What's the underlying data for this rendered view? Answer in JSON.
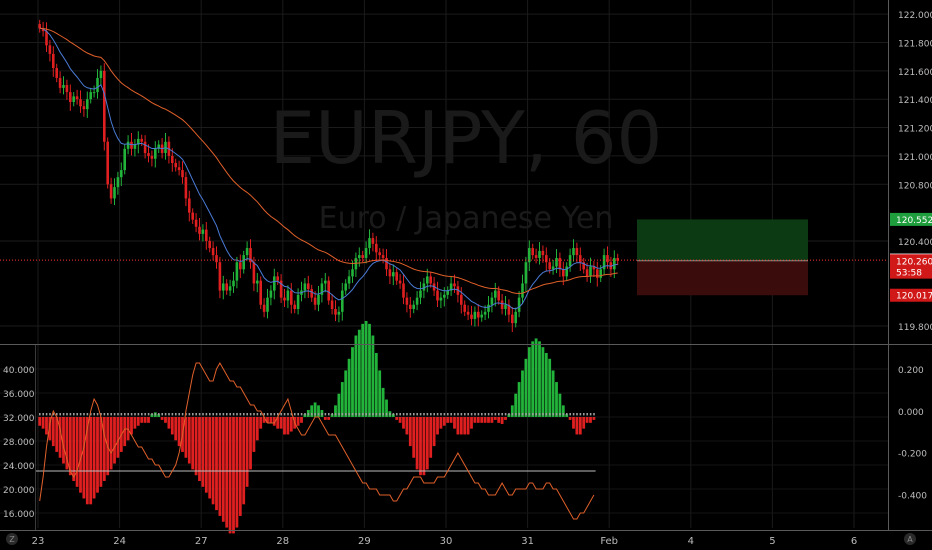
{
  "symbol_watermark": "EURJPY, 60",
  "name_watermark": "Euro / Japanese Yen",
  "price_axis": {
    "ticks": [
      "122.000",
      "121.800",
      "121.600",
      "121.400",
      "121.200",
      "121.000",
      "120.800",
      "120.400",
      "119.800"
    ],
    "tick_values": [
      122.0,
      121.8,
      121.6,
      121.4,
      121.2,
      121.0,
      120.8,
      120.4,
      119.8
    ],
    "range": [
      119.68,
      122.1
    ]
  },
  "price_badges": [
    {
      "label": "120.552",
      "value": 120.552,
      "color": "#1e9e3c"
    },
    {
      "label": "120.265",
      "value": 120.265,
      "color": "#ffffff",
      "text_color": "#000000"
    },
    {
      "label": "120.260",
      "value": 120.26,
      "color": "#d01818"
    },
    {
      "label": "53:58",
      "value": 120.18,
      "color": "#d01818"
    },
    {
      "label": "120.017",
      "value": 120.017,
      "color": "#d01818"
    }
  ],
  "current_price": 120.265,
  "position_box": {
    "entry": 120.26,
    "target": 120.552,
    "stop": 120.017
  },
  "left_axis": {
    "ticks": [
      "40.000",
      "36.000",
      "32.000",
      "28.000",
      "24.000",
      "20.000",
      "16.000"
    ],
    "tick_values": [
      40,
      36,
      32,
      28,
      24,
      20,
      16
    ],
    "range": [
      13.5,
      43.5
    ]
  },
  "right_axis_lower": {
    "ticks": [
      "0.200",
      "0.000",
      "-0.200",
      "-0.400"
    ],
    "tick_values": [
      0.2,
      0.0,
      -0.2,
      -0.4
    ],
    "range": [
      -0.56,
      0.3
    ]
  },
  "threshold_level": 23.0,
  "time_axis": {
    "labels": [
      "23",
      "24",
      "27",
      "28",
      "29",
      "30",
      "31",
      "Feb",
      "4",
      "5",
      "6"
    ],
    "bar_index": [
      0,
      24,
      48,
      72,
      96,
      120,
      144,
      168,
      192,
      216,
      240
    ]
  },
  "corner_icons": {
    "left": "Z",
    "right": "A"
  },
  "colors": {
    "up": "#22b33a",
    "down": "#e02020",
    "ema": "#e0602a",
    "sma": "#4a7bd6",
    "osc": "#e0602a",
    "dot": "#9a9a9a"
  },
  "chart_data": [
    {
      "type": "candlestick",
      "title": "EURJPY, 60",
      "subtitle": "Euro / Japanese Yen",
      "x_unit": "hourly bars",
      "close": [
        121.9,
        121.88,
        121.78,
        121.72,
        121.62,
        121.55,
        121.48,
        121.5,
        121.45,
        121.38,
        121.42,
        121.4,
        121.35,
        121.33,
        121.4,
        121.45,
        121.45,
        121.55,
        121.6,
        121.1,
        120.8,
        120.7,
        120.78,
        120.85,
        120.9,
        121.05,
        121.1,
        121.05,
        121.08,
        121.12,
        121.1,
        121.02,
        121.0,
        120.98,
        121.05,
        121.08,
        121.02,
        121.1,
        121.0,
        120.95,
        120.92,
        120.9,
        120.85,
        120.7,
        120.6,
        120.55,
        120.5,
        120.45,
        120.48,
        120.4,
        120.35,
        120.3,
        120.25,
        120.05,
        120.1,
        120.05,
        120.08,
        120.12,
        120.25,
        120.2,
        120.3,
        120.35,
        120.25,
        120.1,
        120.12,
        119.95,
        119.9,
        120.0,
        120.05,
        120.15,
        120.12,
        120.0,
        119.98,
        120.05,
        119.95,
        119.92,
        120.02,
        120.05,
        120.1,
        120.06,
        120.0,
        119.95,
        120.02,
        120.1,
        120.12,
        119.98,
        119.92,
        119.88,
        119.9,
        120.05,
        120.1,
        120.15,
        120.2,
        120.28,
        120.3,
        120.28,
        120.35,
        120.42,
        120.38,
        120.32,
        120.3,
        120.28,
        120.2,
        120.15,
        120.18,
        120.12,
        120.1,
        120.0,
        119.95,
        119.92,
        119.95,
        120.0,
        120.05,
        120.1,
        120.15,
        120.1,
        120.05,
        119.98,
        120.0,
        120.02,
        120.05,
        120.1,
        120.08,
        120.02,
        119.95,
        119.9,
        119.88,
        119.85,
        119.9,
        119.86,
        119.88,
        119.9,
        119.95,
        120.0,
        120.05,
        119.98,
        119.92,
        119.95,
        119.88,
        119.82,
        119.9,
        120.0,
        120.1,
        120.25,
        120.35,
        120.3,
        120.28,
        120.33,
        120.3,
        120.25,
        120.2,
        120.22,
        120.28,
        120.2,
        120.15,
        120.22,
        120.3,
        120.35,
        120.3,
        120.25,
        120.2,
        120.15,
        120.22,
        120.2,
        120.14,
        120.2,
        120.3,
        120.25,
        120.2,
        120.28,
        120.26
      ]
    },
    {
      "type": "histogram",
      "name": "oscillator histogram",
      "values": [
        -1.5,
        -2,
        -3,
        -4,
        -5,
        -6,
        -7,
        -8,
        -9,
        -10,
        -11,
        -12,
        -13,
        -14,
        -15,
        -15,
        -14,
        -13,
        -12,
        -11,
        -10,
        -9,
        -8,
        -7,
        -6,
        -5,
        -4,
        -3,
        -2,
        -1.5,
        -1,
        -1,
        -1,
        0.5,
        0.8,
        0.5,
        -0.5,
        -1,
        -2,
        -3,
        -4,
        -5,
        -6,
        -7,
        -8,
        -9,
        -10,
        -11,
        -12,
        -13,
        -14,
        -15,
        -16,
        -17,
        -18,
        -19,
        -20,
        -20,
        -19,
        -17,
        -15,
        -12,
        -9,
        -6,
        -4,
        -2,
        -1,
        -1,
        -1,
        -1.5,
        -2,
        -2,
        -3,
        -3,
        -2.5,
        -2,
        -1.5,
        -1,
        0.5,
        1.2,
        2,
        2.5,
        2,
        1.2,
        -0.5,
        -0.5,
        0.5,
        2,
        4,
        6,
        8,
        10,
        12,
        14,
        15,
        16,
        16.5,
        16,
        14,
        11,
        8,
        5,
        3,
        1,
        0.5,
        -0.5,
        -1,
        -2,
        -3,
        -5,
        -7,
        -9,
        -10,
        -10,
        -9,
        -7,
        -5,
        -3,
        -2,
        -1.5,
        -1,
        -1,
        -2,
        -3,
        -3,
        -3,
        -3,
        -2,
        -1,
        -1,
        -1,
        -1,
        -1,
        -1,
        -0.5,
        -1,
        -1.2,
        -0.5,
        0.5,
        2,
        4,
        6,
        8,
        10,
        12,
        13,
        13.5,
        13,
        12,
        11,
        10,
        8,
        6,
        4,
        2,
        0.5,
        -0.5,
        -2,
        -3,
        -3,
        -2,
        -1,
        -1,
        -0.5
      ]
    },
    {
      "type": "line",
      "name": "oscillator line",
      "values": [
        18,
        22,
        27,
        31,
        33,
        32,
        30,
        27,
        25,
        23,
        22,
        23,
        25,
        27,
        30,
        33,
        35,
        34,
        32,
        29,
        27,
        26,
        27,
        28,
        29,
        30,
        30,
        29,
        28,
        27,
        27,
        26,
        25,
        25,
        24,
        24,
        23,
        22,
        22,
        23,
        24,
        26,
        29,
        33,
        36,
        39,
        41,
        41,
        40,
        39,
        38,
        38,
        40,
        41,
        40,
        39,
        38,
        38,
        37,
        37,
        36,
        35,
        34,
        34,
        33,
        33,
        32,
        31,
        31,
        31,
        32,
        33,
        34,
        35,
        33,
        31,
        30,
        29,
        29,
        30,
        31,
        32,
        32,
        31,
        30,
        29,
        29,
        29,
        28,
        27,
        26,
        25,
        24,
        23,
        22,
        21,
        21,
        20,
        20,
        20,
        19,
        19,
        19,
        19,
        18,
        18,
        19,
        20,
        20,
        21,
        22,
        22,
        22,
        21,
        21,
        21,
        21,
        22,
        22,
        22,
        23,
        24,
        25,
        26,
        25,
        24,
        23,
        22,
        21,
        21,
        20,
        20,
        19,
        19,
        19,
        20,
        21,
        20,
        19,
        19,
        20,
        20,
        20,
        20,
        21,
        21,
        20,
        20,
        20,
        21,
        21,
        20,
        20,
        19,
        18,
        17,
        16,
        15,
        15,
        16,
        16,
        17,
        18,
        19
      ]
    }
  ]
}
